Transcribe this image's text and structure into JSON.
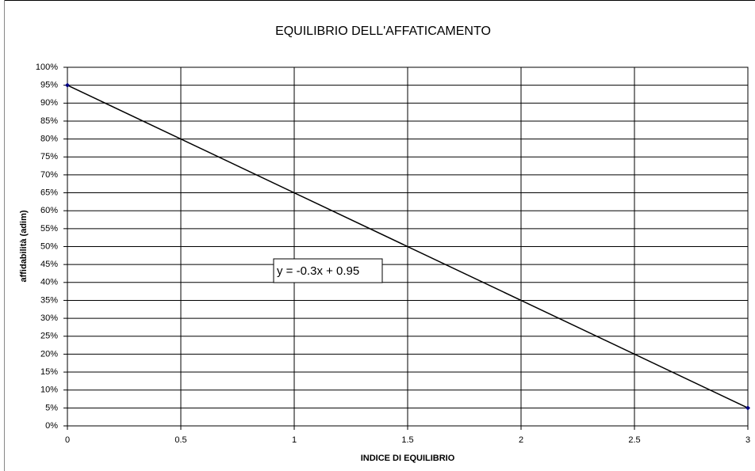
{
  "chart_data": {
    "type": "line",
    "title": "EQUILIBRIO DELL'AFFATICAMENTO",
    "xlabel": "INDICE DI EQUILIBRIO",
    "ylabel": "affidabilità (adim)",
    "annotation": "y = -0.3x + 0.95",
    "x": [
      0,
      3
    ],
    "series": [
      {
        "color": "#000000",
        "marker_color": "#000080",
        "values": [
          95,
          5
        ]
      }
    ],
    "xlim": [
      0,
      3
    ],
    "xticks": [
      0,
      0.5,
      1,
      1.5,
      2,
      2.5,
      3
    ],
    "ylim": [
      0,
      100
    ],
    "yticks": [
      {
        "value": 0,
        "label": "0%"
      },
      {
        "value": 5,
        "label": "5%"
      },
      {
        "value": 10,
        "label": "10%"
      },
      {
        "value": 15,
        "label": "15%"
      },
      {
        "value": 20,
        "label": "20%"
      },
      {
        "value": 25,
        "label": "25%"
      },
      {
        "value": 30,
        "label": "30%"
      },
      {
        "value": 35,
        "label": "35%"
      },
      {
        "value": 40,
        "label": "40%"
      },
      {
        "value": 45,
        "label": "45%"
      },
      {
        "value": 50,
        "label": "50%"
      },
      {
        "value": 55,
        "label": "55%"
      },
      {
        "value": 60,
        "label": "60%"
      },
      {
        "value": 65,
        "label": "65%"
      },
      {
        "value": 70,
        "label": "70%"
      },
      {
        "value": 75,
        "label": "75%"
      },
      {
        "value": 80,
        "label": "80%"
      },
      {
        "value": 85,
        "label": "85%"
      },
      {
        "value": 90,
        "label": "90%"
      },
      {
        "value": 95,
        "label": "95%"
      },
      {
        "value": 100,
        "label": "100%"
      }
    ],
    "grid": true
  }
}
